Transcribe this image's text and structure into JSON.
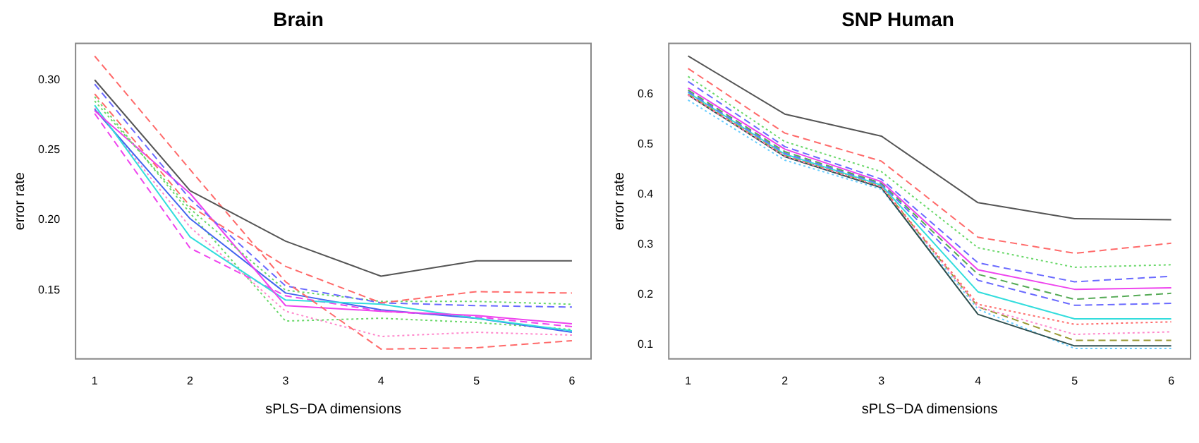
{
  "chart_data": [
    {
      "type": "line",
      "title": "Brain",
      "xlabel": "sPLS−DA dimensions",
      "ylabel": "error rate",
      "x": [
        1,
        2,
        3,
        4,
        5,
        6
      ],
      "xlim": [
        0.8,
        6.2
      ],
      "xticks": [
        1,
        2,
        3,
        4,
        5,
        6
      ],
      "ylim": [
        0.101,
        0.326
      ],
      "yticks": [
        0.15,
        {
          "value": 0.2,
          "label": "0.20"
        },
        0.25,
        {
          "value": 0.3,
          "label": "0.30"
        }
      ],
      "grid": false,
      "legend": false,
      "marker": "none",
      "series": [
        {
          "color": "#555555",
          "line_style": "solid",
          "values": [
            0.3,
            0.221,
            0.185,
            0.16,
            0.171,
            0.171
          ]
        },
        {
          "color": "#ff6a6a",
          "line_style": "dashed",
          "values": [
            0.317,
            0.236,
            0.156,
            0.108,
            0.109,
            0.114
          ]
        },
        {
          "color": "#ff6a6a",
          "line_style": "dashed",
          "values": [
            0.29,
            0.21,
            0.167,
            0.141,
            0.149,
            0.148
          ]
        },
        {
          "color": "#6a6aff",
          "line_style": "dashed",
          "values": [
            0.297,
            0.215,
            0.153,
            0.141,
            0.139,
            0.138
          ]
        },
        {
          "color": "#6ad86a",
          "line_style": "dotted",
          "values": [
            0.285,
            0.208,
            0.15,
            0.142,
            0.142,
            0.14
          ]
        },
        {
          "color": "#ee44ee",
          "line_style": "solid",
          "values": [
            0.278,
            0.219,
            0.139,
            0.135,
            0.132,
            0.126
          ]
        },
        {
          "color": "#33dddd",
          "line_style": "solid",
          "values": [
            0.282,
            0.188,
            0.143,
            0.14,
            0.13,
            0.121
          ]
        },
        {
          "color": "#4466ee",
          "line_style": "solid",
          "values": [
            0.279,
            0.201,
            0.148,
            0.136,
            0.13,
            0.12
          ]
        },
        {
          "color": "#ee44ee",
          "line_style": "dashed",
          "values": [
            0.276,
            0.18,
            0.146,
            0.135,
            0.131,
            0.124
          ]
        },
        {
          "color": "#6ad86a",
          "line_style": "dotted",
          "values": [
            0.288,
            0.205,
            0.128,
            0.13,
            0.127,
            0.122
          ]
        },
        {
          "color": "#ff88cc",
          "line_style": "dotted",
          "values": [
            0.28,
            0.195,
            0.135,
            0.117,
            0.12,
            0.118
          ]
        }
      ]
    },
    {
      "type": "line",
      "title": "SNP Human",
      "xlabel": "sPLS−DA dimensions",
      "ylabel": "error rate",
      "x": [
        1,
        2,
        3,
        4,
        5,
        6
      ],
      "xlim": [
        0.8,
        6.2
      ],
      "xticks": [
        1,
        2,
        3,
        4,
        5,
        6
      ],
      "ylim": [
        0.071,
        0.701
      ],
      "yticks": [
        0.1,
        0.2,
        0.3,
        0.4,
        0.5,
        0.6
      ],
      "grid": false,
      "legend": false,
      "marker": "none",
      "series": [
        {
          "color": "#555555",
          "line_style": "solid",
          "values": [
            0.676,
            0.56,
            0.516,
            0.383,
            0.351,
            0.349
          ]
        },
        {
          "color": "#ff6a6a",
          "line_style": "dashed",
          "values": [
            0.651,
            0.522,
            0.466,
            0.314,
            0.282,
            0.302
          ]
        },
        {
          "color": "#6ad86a",
          "line_style": "dotted",
          "values": [
            0.635,
            0.505,
            0.445,
            0.293,
            0.254,
            0.259
          ]
        },
        {
          "color": "#6a6aff",
          "line_style": "dashed",
          "values": [
            0.625,
            0.495,
            0.43,
            0.263,
            0.225,
            0.236
          ]
        },
        {
          "color": "#ee44ee",
          "line_style": "solid",
          "values": [
            0.612,
            0.49,
            0.425,
            0.249,
            0.21,
            0.213
          ]
        },
        {
          "color": "#55aa55",
          "line_style": "dashed",
          "values": [
            0.608,
            0.485,
            0.422,
            0.24,
            0.19,
            0.202
          ]
        },
        {
          "color": "#6a6aff",
          "line_style": "dashed",
          "values": [
            0.605,
            0.482,
            0.42,
            0.228,
            0.178,
            0.182
          ]
        },
        {
          "color": "#33dddd",
          "line_style": "solid",
          "values": [
            0.603,
            0.48,
            0.418,
            0.205,
            0.151,
            0.151
          ]
        },
        {
          "color": "#ff6a6a",
          "line_style": "dotted",
          "values": [
            0.6,
            0.478,
            0.416,
            0.18,
            0.14,
            0.145
          ]
        },
        {
          "color": "#ff88cc",
          "line_style": "dotted",
          "values": [
            0.598,
            0.476,
            0.415,
            0.175,
            0.12,
            0.125
          ]
        },
        {
          "color": "#999933",
          "line_style": "dashed",
          "values": [
            0.6,
            0.478,
            0.416,
            0.175,
            0.108,
            0.108
          ]
        },
        {
          "color": "#2f4f4f",
          "line_style": "solid",
          "values": [
            0.598,
            0.475,
            0.413,
            0.16,
            0.097,
            0.097
          ]
        },
        {
          "color": "#66ccff",
          "line_style": "dotted",
          "values": [
            0.588,
            0.468,
            0.41,
            0.17,
            0.092,
            0.092
          ]
        }
      ]
    }
  ]
}
